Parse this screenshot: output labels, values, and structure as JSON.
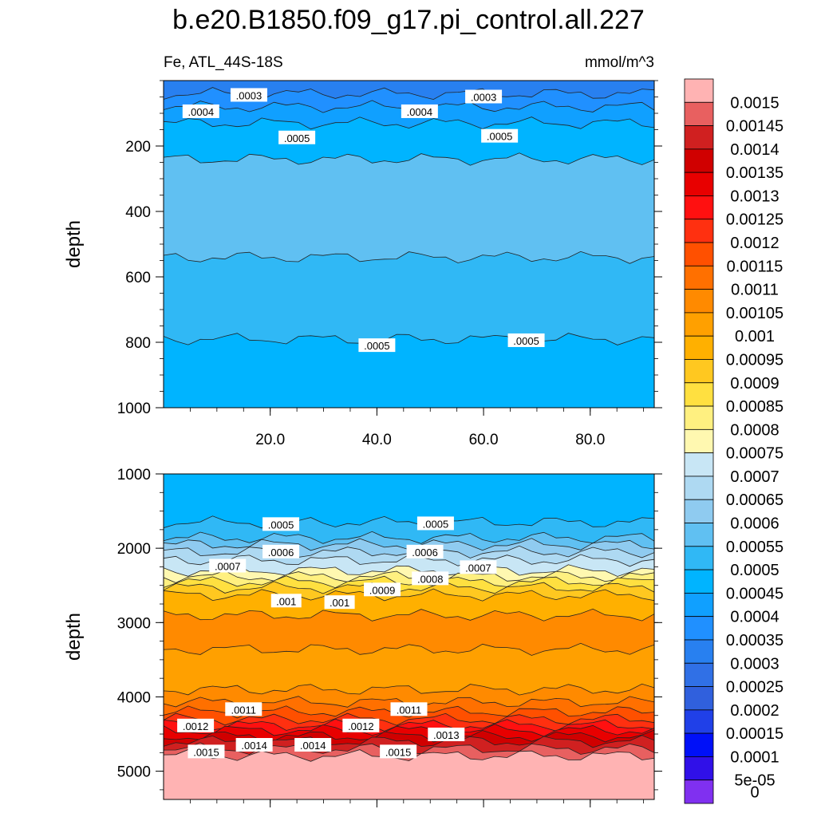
{
  "chart_data": {
    "type": "contour",
    "title": "b.e20.B1850.f09_g17.pi_control.all.227",
    "variable_label": "Fe, ATL_44S-18S",
    "units": "mmol/m^3",
    "x_ticks": [
      "20.0",
      "40.0",
      "60.0",
      "80.0"
    ],
    "x_tick_values": [
      20,
      40,
      60,
      80
    ],
    "xlim": [
      0,
      92
    ],
    "panels": [
      {
        "name": "upper",
        "ylabel": "depth",
        "ylim": [
          0,
          1000
        ],
        "y_ticks": [
          "200",
          "400",
          "600",
          "800",
          "1000"
        ],
        "y_tick_values": [
          200,
          400,
          600,
          800,
          1000
        ],
        "contour_labels": [
          {
            "text": ".0003",
            "x": 16,
            "y": 45
          },
          {
            "text": ".0004",
            "x": 7,
            "y": 95
          },
          {
            "text": ".0004",
            "x": 48,
            "y": 95
          },
          {
            "text": ".0003",
            "x": 60,
            "y": 50
          },
          {
            "text": ".0005",
            "x": 25,
            "y": 175
          },
          {
            "text": ".0005",
            "x": 63,
            "y": 170
          },
          {
            "text": ".0005",
            "x": 40,
            "y": 810
          },
          {
            "text": ".0005",
            "x": 68,
            "y": 795
          }
        ]
      },
      {
        "name": "lower",
        "ylabel": "depth",
        "ylim": [
          1000,
          5380
        ],
        "y_ticks": [
          "1000",
          "2000",
          "3000",
          "4000",
          "5000"
        ],
        "y_tick_values": [
          1000,
          2000,
          3000,
          4000,
          5000
        ],
        "contour_labels": [
          {
            "text": ".0005",
            "x": 22,
            "y": 1680
          },
          {
            "text": ".0005",
            "x": 51,
            "y": 1670
          },
          {
            "text": ".0006",
            "x": 22,
            "y": 2050
          },
          {
            "text": ".0006",
            "x": 49,
            "y": 2050
          },
          {
            "text": ".0007",
            "x": 12,
            "y": 2240
          },
          {
            "text": ".0007",
            "x": 59,
            "y": 2260
          },
          {
            "text": ".0008",
            "x": 50,
            "y": 2410
          },
          {
            "text": ".0009",
            "x": 41,
            "y": 2560
          },
          {
            "text": ".001",
            "x": 23,
            "y": 2710
          },
          {
            "text": ".001",
            "x": 33,
            "y": 2730
          },
          {
            "text": ".0011",
            "x": 15,
            "y": 4170
          },
          {
            "text": ".0011",
            "x": 46,
            "y": 4170
          },
          {
            "text": ".0012",
            "x": 6,
            "y": 4390
          },
          {
            "text": ".0012",
            "x": 37,
            "y": 4390
          },
          {
            "text": ".0013",
            "x": 53,
            "y": 4510
          },
          {
            "text": ".0014",
            "x": 17,
            "y": 4650
          },
          {
            "text": ".0014",
            "x": 28,
            "y": 4650
          },
          {
            "text": ".0015",
            "x": 8,
            "y": 4740
          },
          {
            "text": ".0015",
            "x": 44,
            "y": 4740
          }
        ]
      }
    ],
    "colorbar": {
      "labels": [
        "0.0015",
        "0.00145",
        "0.0014",
        "0.00135",
        "0.0013",
        "0.00125",
        "0.0012",
        "0.00115",
        "0.0011",
        "0.00105",
        "0.001",
        "0.00095",
        "0.0009",
        "0.00085",
        "0.0008",
        "0.00075",
        "0.0007",
        "0.00065",
        "0.0006",
        "0.00055",
        "0.0005",
        "0.00045",
        "0.0004",
        "0.00035",
        "0.0003",
        "0.00025",
        "0.0002",
        "0.00015",
        "0.0001",
        "5e-05",
        "0"
      ],
      "colors": [
        "#FFB3B3",
        "#E86060",
        "#D02020",
        "#D00000",
        "#E80000",
        "#FF1010",
        "#FF3010",
        "#FF5000",
        "#FF7000",
        "#FF8A00",
        "#FFA000",
        "#FFB000",
        "#FFC820",
        "#FFE040",
        "#FFF080",
        "#FFF8B0",
        "#C8E6F5",
        "#AED9F2",
        "#8FCBF0",
        "#60C0F2",
        "#30B8F5",
        "#00B4FF",
        "#10A0FF",
        "#2090FF",
        "#2880F0",
        "#3070E6",
        "#3060DD",
        "#2040E8",
        "#0010F8",
        "#3010E8",
        "#8030F0"
      ]
    }
  }
}
